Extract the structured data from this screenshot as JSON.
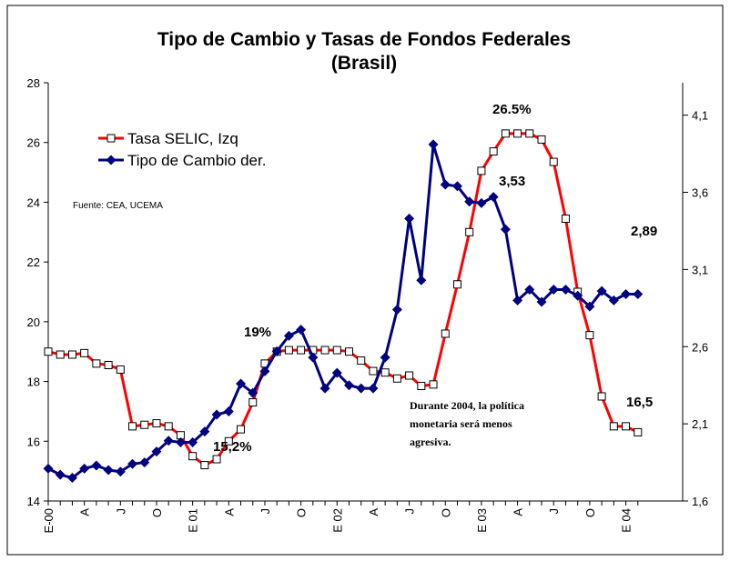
{
  "chart_data": {
    "type": "line",
    "title": "Tipo de Cambio y Tasas de Fondos Federales",
    "subtitle": "(Brasil)",
    "source": "Fuente: CEA, UCEMA",
    "annotations": [
      "26.5%",
      "3,53",
      "2,89",
      "19%",
      "15,2%",
      "16,5",
      "Durante 2004, la política",
      "monetaria será menos",
      "agresiva."
    ],
    "categories": [
      "E-00",
      null,
      null,
      "A",
      null,
      null,
      "J",
      null,
      null,
      "O",
      null,
      null,
      "E 01",
      null,
      null,
      "A",
      null,
      null,
      "J",
      null,
      null,
      "O",
      null,
      null,
      "E 02",
      null,
      null,
      "A",
      null,
      null,
      "J",
      null,
      null,
      "O",
      null,
      null,
      "E 03",
      null,
      null,
      "A",
      null,
      null,
      "J",
      null,
      null,
      "O",
      null,
      null,
      "E 04",
      null
    ],
    "series": [
      {
        "name": "Tasa SELIC, Izq",
        "color": "#ff0000",
        "marker": "square",
        "values": [
          19.0,
          18.9,
          18.9,
          18.95,
          18.6,
          18.55,
          18.4,
          16.5,
          16.55,
          16.6,
          16.5,
          16.2,
          15.5,
          15.2,
          15.4,
          16.0,
          16.4,
          17.3,
          18.6,
          19.0,
          19.05,
          19.05,
          19.05,
          19.05,
          19.05,
          19.0,
          18.7,
          18.35,
          18.3,
          18.1,
          18.2,
          17.85,
          17.9,
          19.6,
          21.25,
          23.0,
          25.05,
          25.7,
          26.3,
          26.3,
          26.3,
          26.1,
          25.35,
          23.45,
          21.0,
          19.55,
          17.5,
          16.5,
          16.5,
          16.3
        ]
      },
      {
        "name": "Tipo de Cambio der.",
        "color": "#000080",
        "marker": "diamond",
        "axis": "y2",
        "values": [
          1.81,
          1.77,
          1.75,
          1.81,
          1.83,
          1.8,
          1.79,
          1.84,
          1.85,
          1.92,
          1.99,
          1.98,
          1.98,
          2.05,
          2.16,
          2.18,
          2.36,
          2.3,
          2.44,
          2.57,
          2.67,
          2.71,
          2.53,
          2.33,
          2.43,
          2.35,
          2.33,
          2.33,
          2.53,
          2.84,
          3.43,
          3.03,
          3.91,
          3.65,
          3.64,
          3.54,
          3.53,
          3.57,
          3.36,
          2.9,
          2.97,
          2.89,
          2.97,
          2.97,
          2.93,
          2.86,
          2.96,
          2.9,
          2.94,
          2.94
        ]
      }
    ],
    "ylim": [
      14,
      28
    ],
    "yticks": [
      14,
      16,
      18,
      20,
      22,
      24,
      26,
      28
    ],
    "y2lim": [
      1.6,
      4.31
    ],
    "y2ticks": [
      {
        "value": 1.6,
        "label": "1,6"
      },
      {
        "value": 2.1,
        "label": "2,1"
      },
      {
        "value": 2.6,
        "label": "2,6"
      },
      {
        "value": 3.1,
        "label": "3,1"
      },
      {
        "value": 3.6,
        "label": "3,6"
      },
      {
        "value": 4.1,
        "label": "4,1"
      }
    ],
    "legend": "upper left"
  }
}
